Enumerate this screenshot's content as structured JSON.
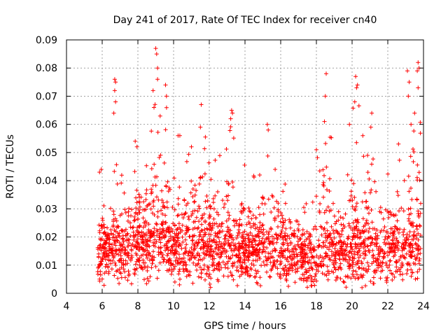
{
  "chart_data": {
    "type": "scatter",
    "title": "Day 241 of 2017, Rate Of TEC Index for receiver cn40",
    "xlabel": "GPS time / hours",
    "ylabel": "ROTI / TECUs",
    "xlim": [
      4,
      24
    ],
    "ylim": [
      0,
      0.09
    ],
    "grid": true,
    "marker": "plus",
    "color": "#ff0000",
    "x_ticks": [
      4,
      6,
      8,
      10,
      12,
      14,
      16,
      18,
      20,
      22,
      24
    ],
    "x_tick_labels": [
      "4",
      "6",
      "8",
      "10",
      "12",
      "14",
      "16",
      "18",
      "20",
      "22",
      "24"
    ],
    "y_ticks": [
      0,
      0.01,
      0.02,
      0.03,
      0.04,
      0.05,
      0.06,
      0.07,
      0.08,
      0.09
    ],
    "y_tick_labels": [
      "0",
      "0.01",
      "0.02",
      "0.03",
      "0.04",
      "0.05",
      "0.06",
      "0.07",
      "0.08",
      "0.09"
    ],
    "data_extent_x": [
      5.75,
      23.85
    ],
    "envelope": [
      {
        "x": 5.8,
        "base": 0.012,
        "top": 0.025,
        "spread": 0.007
      },
      {
        "x": 5.9,
        "base": 0.014,
        "top": 0.044,
        "spread": 0.008
      },
      {
        "x": 6.2,
        "base": 0.013,
        "top": 0.028,
        "spread": 0.007
      },
      {
        "x": 6.6,
        "base": 0.015,
        "top": 0.033,
        "spread": 0.008
      },
      {
        "x": 6.75,
        "base": 0.016,
        "top": 0.077,
        "spread": 0.01
      },
      {
        "x": 7.2,
        "base": 0.014,
        "top": 0.039,
        "spread": 0.008
      },
      {
        "x": 7.7,
        "base": 0.015,
        "top": 0.046,
        "spread": 0.009
      },
      {
        "x": 7.9,
        "base": 0.016,
        "top": 0.054,
        "spread": 0.009
      },
      {
        "x": 8.4,
        "base": 0.016,
        "top": 0.047,
        "spread": 0.009
      },
      {
        "x": 8.8,
        "base": 0.018,
        "top": 0.065,
        "spread": 0.01
      },
      {
        "x": 9.05,
        "base": 0.019,
        "top": 0.087,
        "spread": 0.011
      },
      {
        "x": 9.5,
        "base": 0.018,
        "top": 0.073,
        "spread": 0.01
      },
      {
        "x": 10.0,
        "base": 0.016,
        "top": 0.045,
        "spread": 0.009
      },
      {
        "x": 10.3,
        "base": 0.016,
        "top": 0.056,
        "spread": 0.009
      },
      {
        "x": 11.0,
        "base": 0.016,
        "top": 0.052,
        "spread": 0.009
      },
      {
        "x": 11.5,
        "base": 0.017,
        "top": 0.067,
        "spread": 0.01
      },
      {
        "x": 12.0,
        "base": 0.016,
        "top": 0.048,
        "spread": 0.009
      },
      {
        "x": 12.5,
        "base": 0.015,
        "top": 0.05,
        "spread": 0.009
      },
      {
        "x": 13.2,
        "base": 0.016,
        "top": 0.065,
        "spread": 0.009
      },
      {
        "x": 14.0,
        "base": 0.014,
        "top": 0.047,
        "spread": 0.008
      },
      {
        "x": 14.5,
        "base": 0.014,
        "top": 0.043,
        "spread": 0.008
      },
      {
        "x": 15.2,
        "base": 0.015,
        "top": 0.06,
        "spread": 0.009
      },
      {
        "x": 15.7,
        "base": 0.015,
        "top": 0.05,
        "spread": 0.008
      },
      {
        "x": 16.2,
        "base": 0.013,
        "top": 0.04,
        "spread": 0.008
      },
      {
        "x": 17.0,
        "base": 0.012,
        "top": 0.037,
        "spread": 0.007
      },
      {
        "x": 17.6,
        "base": 0.011,
        "top": 0.03,
        "spread": 0.007
      },
      {
        "x": 18.1,
        "base": 0.013,
        "top": 0.051,
        "spread": 0.008
      },
      {
        "x": 18.5,
        "base": 0.014,
        "top": 0.078,
        "spread": 0.009
      },
      {
        "x": 19.0,
        "base": 0.013,
        "top": 0.045,
        "spread": 0.008
      },
      {
        "x": 19.5,
        "base": 0.013,
        "top": 0.04,
        "spread": 0.008
      },
      {
        "x": 19.9,
        "base": 0.014,
        "top": 0.06,
        "spread": 0.009
      },
      {
        "x": 20.2,
        "base": 0.015,
        "top": 0.077,
        "spread": 0.01
      },
      {
        "x": 20.7,
        "base": 0.014,
        "top": 0.05,
        "spread": 0.009
      },
      {
        "x": 21.1,
        "base": 0.015,
        "top": 0.064,
        "spread": 0.009
      },
      {
        "x": 21.6,
        "base": 0.014,
        "top": 0.045,
        "spread": 0.008
      },
      {
        "x": 22.2,
        "base": 0.014,
        "top": 0.048,
        "spread": 0.009
      },
      {
        "x": 22.6,
        "base": 0.014,
        "top": 0.053,
        "spread": 0.009
      },
      {
        "x": 23.2,
        "base": 0.015,
        "top": 0.079,
        "spread": 0.01
      },
      {
        "x": 23.6,
        "base": 0.016,
        "top": 0.082,
        "spread": 0.011
      },
      {
        "x": 23.85,
        "base": 0.015,
        "top": 0.06,
        "spread": 0.01
      }
    ],
    "highlight_points": [
      {
        "x": 9.0,
        "y": 0.087
      },
      {
        "x": 9.05,
        "y": 0.085
      },
      {
        "x": 9.1,
        "y": 0.08
      },
      {
        "x": 9.1,
        "y": 0.076
      },
      {
        "x": 8.85,
        "y": 0.072
      },
      {
        "x": 8.9,
        "y": 0.066
      },
      {
        "x": 9.55,
        "y": 0.074
      },
      {
        "x": 9.6,
        "y": 0.07
      },
      {
        "x": 6.7,
        "y": 0.076
      },
      {
        "x": 6.75,
        "y": 0.075
      },
      {
        "x": 6.7,
        "y": 0.072
      },
      {
        "x": 6.75,
        "y": 0.068
      },
      {
        "x": 6.65,
        "y": 0.064
      },
      {
        "x": 11.55,
        "y": 0.067
      },
      {
        "x": 11.5,
        "y": 0.059
      },
      {
        "x": 13.25,
        "y": 0.065
      },
      {
        "x": 13.3,
        "y": 0.064
      },
      {
        "x": 13.2,
        "y": 0.062
      },
      {
        "x": 18.55,
        "y": 0.078
      },
      {
        "x": 18.5,
        "y": 0.07
      },
      {
        "x": 18.45,
        "y": 0.061
      },
      {
        "x": 20.2,
        "y": 0.077
      },
      {
        "x": 20.3,
        "y": 0.074
      },
      {
        "x": 20.25,
        "y": 0.073
      },
      {
        "x": 20.15,
        "y": 0.068
      },
      {
        "x": 19.85,
        "y": 0.06
      },
      {
        "x": 21.1,
        "y": 0.064
      },
      {
        "x": 23.1,
        "y": 0.079
      },
      {
        "x": 23.7,
        "y": 0.082
      },
      {
        "x": 23.75,
        "y": 0.08
      },
      {
        "x": 23.65,
        "y": 0.079
      },
      {
        "x": 23.2,
        "y": 0.075
      },
      {
        "x": 23.7,
        "y": 0.073
      },
      {
        "x": 23.15,
        "y": 0.07
      },
      {
        "x": 23.5,
        "y": 0.064
      },
      {
        "x": 23.3,
        "y": 0.06
      },
      {
        "x": 10.25,
        "y": 0.056
      },
      {
        "x": 10.35,
        "y": 0.056
      },
      {
        "x": 15.25,
        "y": 0.06
      },
      {
        "x": 15.3,
        "y": 0.058
      },
      {
        "x": 7.85,
        "y": 0.054
      },
      {
        "x": 7.95,
        "y": 0.052
      },
      {
        "x": 11.0,
        "y": 0.052
      },
      {
        "x": 18.0,
        "y": 0.051
      },
      {
        "x": 21.05,
        "y": 0.059
      },
      {
        "x": 22.6,
        "y": 0.053
      },
      {
        "x": 20.6,
        "y": 0.056
      },
      {
        "x": 5.95,
        "y": 0.044
      },
      {
        "x": 5.85,
        "y": 0.043
      }
    ]
  }
}
